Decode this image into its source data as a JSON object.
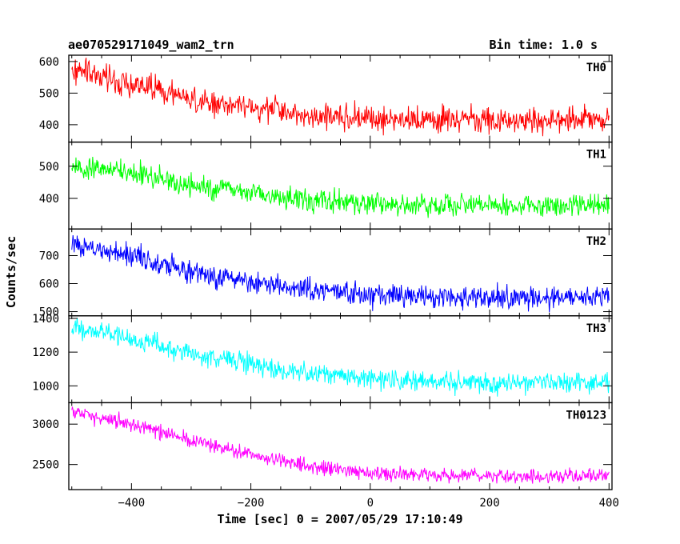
{
  "header": {
    "title": "ae070529171049_wam2_trn",
    "bin_time": "Bin time: 1.0 s"
  },
  "chart_data": {
    "type": "line",
    "ylabel": "Counts/sec",
    "xlabel": "Time [sec] 0 = 2007/05/29 17:10:49",
    "xlim": [
      -505,
      405
    ],
    "x_ticks": [
      -400,
      -200,
      0,
      200,
      400
    ],
    "x_tick_labels": [
      "−400",
      "−200",
      "0",
      "200",
      "400"
    ],
    "x_data_range": [
      -500,
      400
    ],
    "panels": [
      {
        "name": "TH0",
        "color": "#ff0000",
        "ylim": [
          345,
          620
        ],
        "y_ticks": [
          400,
          500,
          600
        ],
        "y_tick_labels": [
          "400",
          "500",
          "600"
        ],
        "trend": [
          [
            -500,
            575
          ],
          [
            -400,
            530
          ],
          [
            -300,
            480
          ],
          [
            -200,
            455
          ],
          [
            -100,
            430
          ],
          [
            0,
            420
          ],
          [
            100,
            415
          ],
          [
            200,
            415
          ],
          [
            300,
            415
          ],
          [
            400,
            415
          ]
        ],
        "noise": 30
      },
      {
        "name": "TH1",
        "color": "#00ff00",
        "ylim": [
          305,
          575
        ],
        "y_ticks": [
          400,
          500
        ],
        "y_tick_labels": [
          "400",
          "500"
        ],
        "trend": [
          [
            -500,
            500
          ],
          [
            -400,
            480
          ],
          [
            -300,
            440
          ],
          [
            -200,
            415
          ],
          [
            -100,
            395
          ],
          [
            0,
            385
          ],
          [
            100,
            380
          ],
          [
            200,
            378
          ],
          [
            300,
            378
          ],
          [
            400,
            380
          ]
        ],
        "noise": 25
      },
      {
        "name": "TH2",
        "color": "#0000ff",
        "ylim": [
          485,
          795
        ],
        "y_ticks": [
          500,
          600,
          700
        ],
        "y_tick_labels": [
          "500",
          "600",
          "700"
        ],
        "trend": [
          [
            -500,
            740
          ],
          [
            -400,
            700
          ],
          [
            -300,
            640
          ],
          [
            -200,
            605
          ],
          [
            -100,
            580
          ],
          [
            0,
            560
          ],
          [
            100,
            555
          ],
          [
            200,
            552
          ],
          [
            300,
            550
          ],
          [
            400,
            550
          ]
        ],
        "noise": 30
      },
      {
        "name": "TH3",
        "color": "#00ffff",
        "ylim": [
          900,
          1415
        ],
        "y_ticks": [
          1000,
          1200,
          1400
        ],
        "y_tick_labels": [
          "1000",
          "1200",
          "1400"
        ],
        "trend": [
          [
            -500,
            1350
          ],
          [
            -400,
            1280
          ],
          [
            -300,
            1190
          ],
          [
            -200,
            1130
          ],
          [
            -100,
            1070
          ],
          [
            0,
            1040
          ],
          [
            100,
            1025
          ],
          [
            200,
            1020
          ],
          [
            300,
            1020
          ],
          [
            400,
            1020
          ]
        ],
        "noise": 45
      },
      {
        "name": "TH0123",
        "color": "#ff00ff",
        "ylim": [
          2190,
          3265
        ],
        "y_ticks": [
          2500,
          3000
        ],
        "y_tick_labels": [
          "2500",
          "3000"
        ],
        "trend": [
          [
            -500,
            3150
          ],
          [
            -400,
            3000
          ],
          [
            -300,
            2800
          ],
          [
            -200,
            2620
          ],
          [
            -100,
            2480
          ],
          [
            0,
            2400
          ],
          [
            100,
            2370
          ],
          [
            200,
            2360
          ],
          [
            300,
            2360
          ],
          [
            400,
            2360
          ]
        ],
        "noise": 65
      }
    ]
  }
}
